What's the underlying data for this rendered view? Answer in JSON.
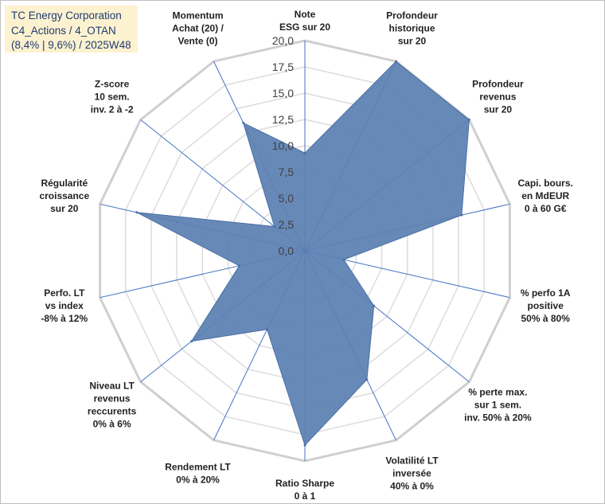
{
  "chart_data": {
    "type": "radar",
    "title_lines": [
      "TC Energy Corporation",
      "C4_Actions / 4_OTAN",
      "(8,4% | 9,6%) / 2025W48"
    ],
    "axes": [
      {
        "label": [
          "Note",
          "ESG sur 20"
        ],
        "value": 9.3
      },
      {
        "label": [
          "Profondeur",
          "historique",
          "sur 20"
        ],
        "value": 20
      },
      {
        "label": [
          "Profondeur",
          "revenus",
          "sur 20"
        ],
        "value": 20
      },
      {
        "label": [
          "Capi. bours.",
          "en MdEUR",
          "0 à 60 G€"
        ],
        "value": 15.3
      },
      {
        "label": [
          "% perfo 1A",
          "positive",
          "50% à 80%"
        ],
        "value": 3.8
      },
      {
        "label": [
          "% perte max.",
          "sur 1 sem.",
          "inv. 50% à 20%"
        ],
        "value": 8.4
      },
      {
        "label": [
          "Volatilité LT",
          "inversée",
          "40% à 0%"
        ],
        "value": 13.6
      },
      {
        "label": [
          "Ratio Sharpe",
          "0 à 1"
        ],
        "value": 18.5
      },
      {
        "label": [
          "Rendement LT",
          "0% à 20%"
        ],
        "value": 8.3
      },
      {
        "label": [
          "Niveau LT",
          "revenus",
          "reccurents",
          "0% à 6%"
        ],
        "value": 13.8
      },
      {
        "label": [
          "Perfo. LT",
          "vs index",
          "-8% à 12%"
        ],
        "value": 6.4
      },
      {
        "label": [
          "Régularité",
          "croissance",
          "sur 20"
        ],
        "value": 16.4
      },
      {
        "label": [
          "Z-score",
          "10 sem.",
          "inv. 2 à -2"
        ],
        "value": 3.7
      },
      {
        "label": [
          "Momentum",
          "Achat (20) /",
          "Vente (0)"
        ],
        "value": 13.5
      }
    ],
    "r_ticks": [
      "0,0",
      "2,5",
      "5,0",
      "7,5",
      "10,0",
      "12,5",
      "15,0",
      "17,5",
      "20,0"
    ],
    "rlim": [
      0,
      20
    ],
    "series": [
      {
        "name": "TC Energy Corporation",
        "color": "#5b80b2"
      }
    ]
  }
}
